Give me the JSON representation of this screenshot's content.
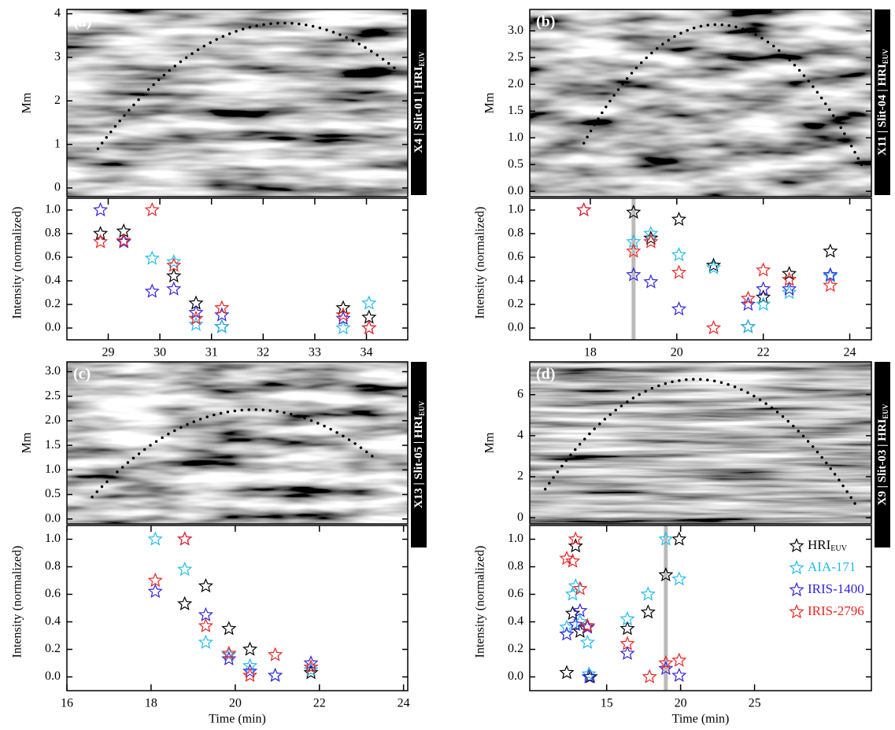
{
  "chart_data": [
    {
      "type": "scatter",
      "panel_label": "(a)",
      "side_label": "X4 | Slit-01 | HRI",
      "side_label_sub": "EUV",
      "image": {
        "ylabel": "Mm",
        "ylim": [
          -0.2,
          4.1
        ],
        "yticks": [
          0,
          1,
          2,
          3,
          4
        ],
        "fit": {
          "x": [
            28.8,
            32.05,
            34.6
          ],
          "y": [
            0.9,
            3.76,
            2.7
          ]
        }
      },
      "xlabel": "Time (min)",
      "ylabel": "Intensity (normalized)",
      "xlim": [
        28.2,
        34.8
      ],
      "xticks": [
        29,
        30,
        31,
        32,
        33,
        34
      ],
      "ylim": [
        -0.1,
        1.1
      ],
      "yticks": [
        {
          "value": 0,
          "label": "0.0"
        },
        0.2,
        0.4,
        0.6,
        0.8,
        {
          "value": 1,
          "label": "1.0"
        }
      ],
      "series": [
        {
          "color": "#000000",
          "x": [
            28.85,
            29.3,
            30.27,
            30.7,
            31.2,
            33.55,
            34.05
          ],
          "values": [
            0.8,
            0.82,
            0.44,
            0.21,
            0.01,
            0.17,
            0.09
          ]
        },
        {
          "color": "#22bbee",
          "x": [
            29.3,
            29.85,
            30.27,
            30.7,
            31.2,
            33.55,
            34.05
          ],
          "values": [
            0.73,
            0.59,
            0.56,
            0.03,
            0.01,
            0.0,
            0.21
          ]
        },
        {
          "color": "#3322dd",
          "x": [
            28.85,
            29.3,
            29.85,
            30.27,
            30.7,
            31.2,
            33.55,
            34.05
          ],
          "values": [
            1.0,
            0.73,
            0.31,
            0.33,
            0.13,
            0.11,
            0.08,
            0.0
          ]
        },
        {
          "color": "#ee2222",
          "x": [
            28.85,
            29.3,
            29.85,
            30.27,
            30.7,
            31.2,
            33.55,
            34.05
          ],
          "values": [
            0.73,
            0.74,
            1.0,
            0.53,
            0.08,
            0.17,
            0.11,
            0.0
          ]
        }
      ]
    },
    {
      "type": "scatter",
      "panel_label": "(b)",
      "side_label": "X11 | Slit-04 | HRI",
      "side_label_sub": "EUV",
      "image": {
        "ylabel": "Mm",
        "ylim": [
          -0.1,
          3.4
        ],
        "yticks": [
          {
            "value": 0,
            "label": "0.0"
          },
          0.5,
          {
            "value": 1,
            "label": "1.0"
          },
          1.5,
          {
            "value": 2,
            "label": "2.0"
          },
          2.5,
          {
            "value": 3,
            "label": "3.0"
          }
        ],
        "fit": {
          "x": [
            17.85,
            21.2,
            24.3
          ],
          "y": [
            0.9,
            3.1,
            0.45
          ]
        }
      },
      "xlabel": "Time (min)",
      "ylabel": "Intensity (normalized)",
      "xlim": [
        16.6,
        24.5
      ],
      "xticks": [
        18,
        20,
        22,
        24
      ],
      "ylim": [
        -0.1,
        1.1
      ],
      "yticks": [
        {
          "value": 0,
          "label": "0.0"
        },
        0.2,
        0.4,
        0.6,
        0.8,
        {
          "value": 1,
          "label": "1.0"
        }
      ],
      "marker_x": 19.0,
      "series": [
        {
          "color": "#000000",
          "x": [
            19.0,
            19.4,
            20.05,
            20.85,
            21.65,
            22.0,
            22.6,
            23.55
          ],
          "values": [
            0.98,
            0.76,
            0.92,
            0.53,
            0.01,
            0.26,
            0.46,
            0.65
          ]
        },
        {
          "color": "#22bbee",
          "x": [
            19.0,
            19.4,
            20.05,
            20.85,
            21.65,
            22.0,
            22.6,
            23.55
          ],
          "values": [
            0.73,
            0.8,
            0.62,
            0.51,
            0.01,
            0.2,
            0.3,
            0.44
          ]
        },
        {
          "color": "#3322dd",
          "x": [
            17.85,
            19.0,
            19.4,
            20.05,
            21.65,
            22.0,
            22.6,
            23.55
          ],
          "values": [
            1.0,
            0.45,
            0.39,
            0.16,
            0.2,
            0.33,
            0.33,
            0.45
          ]
        },
        {
          "color": "#ee2222",
          "x": [
            17.85,
            19.0,
            19.4,
            20.05,
            20.85,
            21.65,
            22.0,
            22.6,
            23.55
          ],
          "values": [
            1.0,
            0.65,
            0.73,
            0.47,
            0.0,
            0.25,
            0.49,
            0.41,
            0.36
          ]
        }
      ]
    },
    {
      "type": "scatter",
      "panel_label": "(c)",
      "side_label": "X13 | Slit-05 | HRI",
      "side_label_sub": "EUV",
      "image": {
        "ylabel": "Mm",
        "ylim": [
          -0.1,
          3.2
        ],
        "yticks": [
          {
            "value": 0,
            "label": "0.0"
          },
          0.5,
          {
            "value": 1,
            "label": "1.0"
          },
          1.5,
          {
            "value": 2,
            "label": "2.0"
          },
          2.5,
          {
            "value": 3,
            "label": "3.0"
          }
        ],
        "fit": {
          "x": [
            16.6,
            21.3,
            23.3
          ],
          "y": [
            0.45,
            2.14,
            1.25
          ]
        }
      },
      "xlabel": "Time (min)",
      "ylabel": "Intensity (normalized)",
      "xlim": [
        16,
        24.1
      ],
      "xticks": [
        16,
        18,
        20,
        22,
        24
      ],
      "ylim": [
        -0.1,
        1.1
      ],
      "yticks": [
        {
          "value": 0,
          "label": "0.0"
        },
        0.2,
        0.4,
        0.6,
        0.8,
        {
          "value": 1,
          "label": "1.0"
        }
      ],
      "series": [
        {
          "color": "#000000",
          "x": [
            18.8,
            19.3,
            19.85,
            20.35,
            21.8
          ],
          "values": [
            0.53,
            0.66,
            0.35,
            0.2,
            0.03
          ]
        },
        {
          "color": "#22bbee",
          "x": [
            18.1,
            18.8,
            19.3,
            19.85,
            20.35,
            20.95,
            21.8
          ],
          "values": [
            1.0,
            0.78,
            0.25,
            0.16,
            0.08,
            0.01,
            0.05
          ]
        },
        {
          "color": "#3322dd",
          "x": [
            18.1,
            18.8,
            19.3,
            19.85,
            20.35,
            20.95,
            21.8
          ],
          "values": [
            0.62,
            1.0,
            0.45,
            0.13,
            0.04,
            0.01,
            0.1
          ]
        },
        {
          "color": "#ee2222",
          "x": [
            18.1,
            18.8,
            19.3,
            19.85,
            20.35,
            20.95,
            21.8
          ],
          "values": [
            0.7,
            1.0,
            0.37,
            0.17,
            0.01,
            0.16,
            0.07
          ]
        }
      ]
    },
    {
      "type": "scatter",
      "panel_label": "(d)",
      "side_label": "X9 | Slit-03 | HRI",
      "side_label_sub": "EUV",
      "image": {
        "ylabel": "Mm",
        "ylim": [
          -0.3,
          7.6
        ],
        "yticks": [
          0,
          2,
          4,
          6
        ],
        "fit": {
          "x": [
            10.85,
            20.7,
            32.0
          ],
          "y": [
            1.4,
            6.75,
            0.45
          ]
        }
      },
      "xlabel": "Time (min)",
      "ylabel": "Intensity (normalized)",
      "xlim": [
        9.8,
        32.9
      ],
      "xticks": [
        15,
        20,
        25
      ],
      "ylim": [
        -0.1,
        1.1
      ],
      "yticks": [
        {
          "value": 0,
          "label": "0.0"
        },
        0.2,
        0.4,
        0.6,
        0.8,
        {
          "value": 1,
          "label": "1.0"
        }
      ],
      "marker_x": 19.0,
      "legend": "upper right",
      "series": [
        {
          "name": "HRI",
          "name_sub": "EUV",
          "color": "#000000",
          "x": [
            12.3,
            12.7,
            12.9,
            13.2,
            13.7,
            13.9,
            16.4,
            17.8,
            19.0,
            19.9
          ],
          "values": [
            0.03,
            0.46,
            0.95,
            0.33,
            0.37,
            0.0,
            0.35,
            0.47,
            0.74,
            1.0
          ]
        },
        {
          "name": "AIA-171",
          "color": "#22bbee",
          "x": [
            12.3,
            12.7,
            12.9,
            13.2,
            13.7,
            13.8,
            16.4,
            17.8,
            19.0,
            19.9
          ],
          "values": [
            0.36,
            0.6,
            0.66,
            0.4,
            0.25,
            0.02,
            0.42,
            0.6,
            1.0,
            0.71
          ]
        },
        {
          "name": "IRIS-1400",
          "color": "#3322dd",
          "x": [
            12.3,
            12.9,
            13.2,
            13.7,
            13.8,
            16.4,
            19.0,
            19.9
          ],
          "values": [
            0.31,
            0.38,
            0.48,
            0.36,
            0.0,
            0.17,
            0.06,
            0.01
          ]
        },
        {
          "name": "IRIS-2796",
          "color": "#ee2222",
          "x": [
            12.3,
            12.7,
            12.9,
            13.2,
            13.7,
            16.4,
            17.9,
            19.0,
            19.9
          ],
          "values": [
            0.86,
            0.84,
            1.0,
            0.64,
            0.37,
            0.24,
            0.0,
            0.1,
            0.12
          ]
        }
      ]
    }
  ]
}
